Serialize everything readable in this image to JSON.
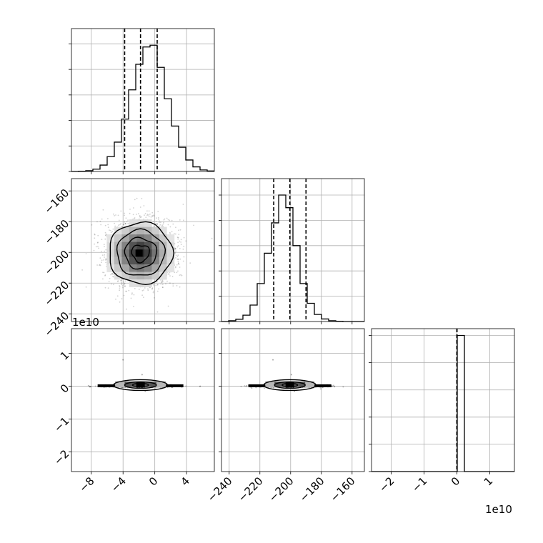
{
  "chart_data": {
    "type": "corner",
    "parameters": [
      {
        "range": [
          -10.5,
          7.5
        ],
        "ticks": [
          -8,
          -4,
          0,
          4
        ],
        "tick_labels": [
          "−8",
          "−4",
          "0",
          "4"
        ],
        "quantiles": [
          -3.8,
          -1.8,
          0.3
        ]
      },
      {
        "range": [
          -245,
          -152
        ],
        "ticks": [
          -240,
          -220,
          -200,
          -180,
          -160
        ],
        "tick_labels": [
          "−240",
          "−220",
          "−200",
          "−180",
          "−160"
        ],
        "quantiles": [
          -211,
          -200.5,
          -190
        ]
      },
      {
        "range": [
          -2.6,
          1.75
        ],
        "ticks": [
          -2,
          -1,
          0,
          1
        ],
        "tick_labels": [
          "−2",
          "−1",
          "0",
          "1"
        ],
        "offset_label": "1e10",
        "quantiles": [
          0,
          0,
          0
        ]
      }
    ],
    "hist1d": [
      {
        "edges_start": -10.5,
        "bin_width": 0.9,
        "counts": [
          0,
          1,
          3,
          9,
          25,
          58,
          115,
          205,
          320,
          420,
          488,
          495,
          408,
          285,
          178,
          95,
          45,
          18,
          6,
          2
        ]
      },
      {
        "edges_start": -245,
        "bin_width": 4.65,
        "counts": [
          0,
          3,
          9,
          25,
          65,
          150,
          270,
          390,
          500,
          450,
          300,
          150,
          72,
          28,
          10,
          3,
          1,
          0,
          0,
          0
        ]
      },
      {
        "edges_start": -2.6,
        "bin_width": 0.2175,
        "counts": [
          0,
          0,
          0,
          0,
          0,
          0,
          0,
          0,
          0,
          0,
          0,
          0,
          1,
          0,
          0,
          0,
          0,
          0,
          0,
          0
        ]
      }
    ],
    "hist1d_ylim": [
      [
        0,
        560
      ],
      [
        0,
        565
      ],
      [
        0,
        1.05
      ]
    ],
    "mean": [
      -1.8,
      -200.5,
      0.0
    ],
    "std": [
      2.0,
      10.0,
      0.0
    ]
  }
}
